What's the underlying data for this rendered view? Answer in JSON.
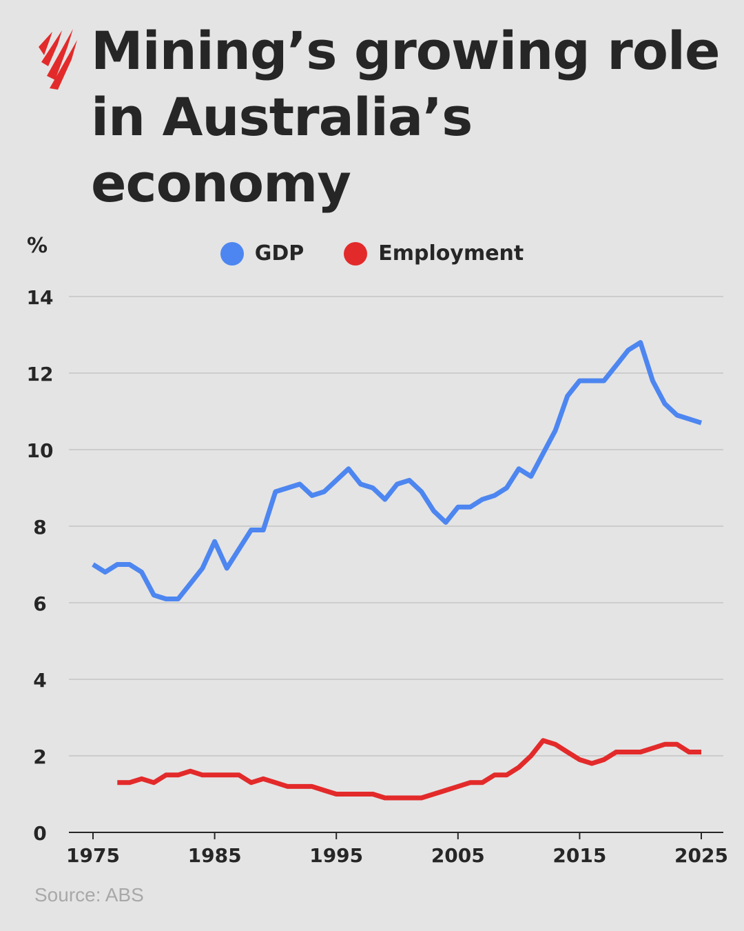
{
  "header": {
    "title_lines": [
      "Mining’s growing role",
      "in Australia’s",
      "economy"
    ],
    "logo_icon": "sbs-logo-icon"
  },
  "source": "Source: ABS",
  "colors": {
    "background": "#e4e4e4",
    "gdp": "#4d86f0",
    "employment": "#e32a2a",
    "grid": "#bdbdbd",
    "text": "#262626",
    "logo": "#e32a2a"
  },
  "chart_data": {
    "type": "line",
    "title": "Mining’s growing role in Australia’s economy",
    "ylabel": "%",
    "xlabel": "",
    "xlim": [
      1975,
      2025
    ],
    "ylim": [
      0,
      14
    ],
    "x_ticks": [
      1975,
      1985,
      1995,
      2005,
      2015,
      2025
    ],
    "y_ticks": [
      0,
      2,
      4,
      6,
      8,
      10,
      12,
      14
    ],
    "grid": "horizontal",
    "legend_position": "top-center",
    "series": [
      {
        "name": "GDP",
        "color": "#4d86f0",
        "x": [
          1975,
          1976,
          1977,
          1978,
          1979,
          1980,
          1981,
          1982,
          1983,
          1984,
          1985,
          1986,
          1987,
          1988,
          1989,
          1990,
          1991,
          1992,
          1993,
          1994,
          1995,
          1996,
          1997,
          1998,
          1999,
          2000,
          2001,
          2002,
          2003,
          2004,
          2005,
          2006,
          2007,
          2008,
          2009,
          2010,
          2011,
          2012,
          2013,
          2014,
          2015,
          2016,
          2017,
          2018,
          2019,
          2020,
          2021,
          2022,
          2023,
          2024,
          2025
        ],
        "values": [
          7.0,
          6.8,
          7.0,
          7.0,
          6.8,
          6.2,
          6.1,
          6.1,
          6.5,
          6.9,
          7.6,
          6.9,
          7.4,
          7.9,
          7.9,
          8.9,
          9.0,
          9.1,
          8.8,
          8.9,
          9.2,
          9.5,
          9.1,
          9.0,
          8.7,
          9.1,
          9.2,
          8.9,
          8.4,
          8.1,
          8.5,
          8.5,
          8.7,
          8.8,
          9.0,
          9.5,
          9.3,
          9.9,
          10.5,
          11.4,
          11.8,
          11.8,
          11.8,
          12.2,
          12.6,
          12.8,
          11.8,
          11.2,
          10.9,
          10.8,
          10.7
        ]
      },
      {
        "name": "Employment",
        "color": "#e32a2a",
        "x": [
          1977,
          1978,
          1979,
          1980,
          1981,
          1982,
          1983,
          1984,
          1985,
          1986,
          1987,
          1988,
          1989,
          1990,
          1991,
          1992,
          1993,
          1994,
          1995,
          1996,
          1997,
          1998,
          1999,
          2000,
          2001,
          2002,
          2003,
          2004,
          2005,
          2006,
          2007,
          2008,
          2009,
          2010,
          2011,
          2012,
          2013,
          2014,
          2015,
          2016,
          2017,
          2018,
          2019,
          2020,
          2021,
          2022,
          2023,
          2024,
          2025
        ],
        "values": [
          1.3,
          1.3,
          1.4,
          1.3,
          1.5,
          1.5,
          1.6,
          1.5,
          1.5,
          1.5,
          1.5,
          1.3,
          1.4,
          1.3,
          1.2,
          1.2,
          1.2,
          1.1,
          1.0,
          1.0,
          1.0,
          1.0,
          0.9,
          0.9,
          0.9,
          0.9,
          1.0,
          1.1,
          1.2,
          1.3,
          1.3,
          1.5,
          1.5,
          1.7,
          2.0,
          2.4,
          2.3,
          2.1,
          1.9,
          1.8,
          1.9,
          2.1,
          2.1,
          2.1,
          2.2,
          2.3,
          2.3,
          2.1,
          2.1
        ]
      }
    ]
  }
}
